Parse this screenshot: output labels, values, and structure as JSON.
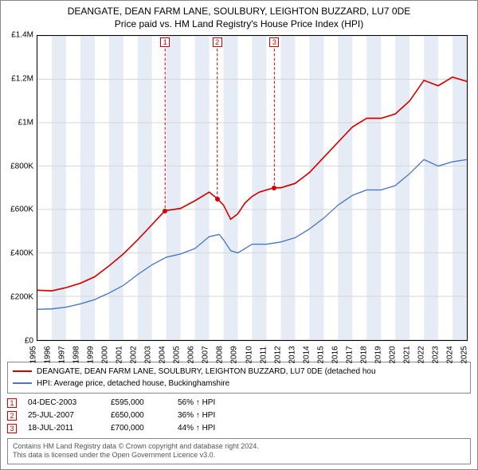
{
  "title_line1": "DEANGATE, DEAN FARM LANE, SOULBURY, LEIGHTON BUZZARD, LU7 0DE",
  "title_line2": "Price paid vs. HM Land Registry's House Price Index (HPI)",
  "chart": {
    "type": "line",
    "background_color": "#ffffff",
    "grid_color": "#d9d9d9",
    "y_axis": {
      "min": 0,
      "max": 1400000,
      "ticks": [
        0,
        200000,
        400000,
        600000,
        800000,
        1000000,
        1200000,
        1400000
      ],
      "tick_labels": [
        "£0",
        "£200K",
        "£400K",
        "£600K",
        "£800K",
        "£1M",
        "£1.2M",
        "£1.4M"
      ],
      "label_fontsize": 10
    },
    "x_axis": {
      "min": 1995,
      "max": 2025,
      "ticks": [
        1995,
        1996,
        1997,
        1998,
        1999,
        2000,
        2001,
        2002,
        2003,
        2004,
        2005,
        2006,
        2007,
        2008,
        2009,
        2010,
        2011,
        2012,
        2013,
        2014,
        2015,
        2016,
        2017,
        2018,
        2019,
        2020,
        2021,
        2022,
        2023,
        2024,
        2025
      ],
      "label_rotation": -90,
      "label_fontsize": 10
    },
    "bands": {
      "color": "#e6ecf5",
      "years": [
        1996,
        1998,
        2000,
        2002,
        2004,
        2006,
        2008,
        2010,
        2012,
        2014,
        2016,
        2018,
        2020,
        2022,
        2024
      ]
    },
    "series": [
      {
        "name": "property",
        "color": "#d40000",
        "line_width": 1.5,
        "points": [
          [
            1995,
            228000
          ],
          [
            1996,
            225000
          ],
          [
            1997,
            240000
          ],
          [
            1998,
            260000
          ],
          [
            1999,
            290000
          ],
          [
            2000,
            340000
          ],
          [
            2001,
            395000
          ],
          [
            2002,
            460000
          ],
          [
            2003,
            530000
          ],
          [
            2003.92,
            595000
          ],
          [
            2004.5,
            600000
          ],
          [
            2005,
            605000
          ],
          [
            2006,
            640000
          ],
          [
            2007,
            680000
          ],
          [
            2007.56,
            650000
          ],
          [
            2008,
            620000
          ],
          [
            2008.5,
            555000
          ],
          [
            2009,
            580000
          ],
          [
            2009.5,
            630000
          ],
          [
            2010,
            660000
          ],
          [
            2010.5,
            680000
          ],
          [
            2011,
            690000
          ],
          [
            2011.55,
            700000
          ],
          [
            2012,
            700000
          ],
          [
            2013,
            720000
          ],
          [
            2014,
            770000
          ],
          [
            2015,
            840000
          ],
          [
            2016,
            910000
          ],
          [
            2017,
            980000
          ],
          [
            2018,
            1020000
          ],
          [
            2019,
            1020000
          ],
          [
            2020,
            1040000
          ],
          [
            2021,
            1100000
          ],
          [
            2022,
            1195000
          ],
          [
            2023,
            1170000
          ],
          [
            2024,
            1210000
          ],
          [
            2025,
            1190000
          ]
        ]
      },
      {
        "name": "hpi",
        "color": "#4a76c7",
        "line_width": 1.2,
        "points": [
          [
            1995,
            140000
          ],
          [
            1996,
            142000
          ],
          [
            1997,
            150000
          ],
          [
            1998,
            165000
          ],
          [
            1999,
            185000
          ],
          [
            2000,
            215000
          ],
          [
            2001,
            250000
          ],
          [
            2002,
            300000
          ],
          [
            2003,
            345000
          ],
          [
            2004,
            380000
          ],
          [
            2005,
            395000
          ],
          [
            2006,
            420000
          ],
          [
            2007,
            475000
          ],
          [
            2007.7,
            485000
          ],
          [
            2008,
            460000
          ],
          [
            2008.5,
            410000
          ],
          [
            2009,
            400000
          ],
          [
            2010,
            440000
          ],
          [
            2011,
            440000
          ],
          [
            2012,
            450000
          ],
          [
            2013,
            470000
          ],
          [
            2014,
            510000
          ],
          [
            2015,
            560000
          ],
          [
            2016,
            620000
          ],
          [
            2017,
            665000
          ],
          [
            2018,
            690000
          ],
          [
            2019,
            690000
          ],
          [
            2020,
            710000
          ],
          [
            2021,
            765000
          ],
          [
            2022,
            830000
          ],
          [
            2023,
            800000
          ],
          [
            2024,
            820000
          ],
          [
            2025,
            830000
          ]
        ]
      }
    ],
    "sale_markers": {
      "border_color": "#d40000",
      "dot_color": "#d40000",
      "line_color": "#d40000",
      "items": [
        {
          "num": "1",
          "year": 2003.92,
          "value": 595000
        },
        {
          "num": "2",
          "year": 2007.56,
          "value": 650000
        },
        {
          "num": "3",
          "year": 2011.55,
          "value": 700000
        }
      ]
    }
  },
  "legend": {
    "items": [
      {
        "color": "#d40000",
        "label": "DEANGATE, DEAN FARM LANE, SOULBURY, LEIGHTON BUZZARD, LU7 0DE (detached hou"
      },
      {
        "color": "#4a76c7",
        "label": "HPI: Average price, detached house, Buckinghamshire"
      }
    ]
  },
  "sales_table": {
    "marker_border": "#d40000",
    "hpi_suffix": "↑ HPI",
    "rows": [
      {
        "num": "1",
        "date": "04-DEC-2003",
        "price": "£595,000",
        "pct": "56%"
      },
      {
        "num": "2",
        "date": "25-JUL-2007",
        "price": "£650,000",
        "pct": "36%"
      },
      {
        "num": "3",
        "date": "18-JUL-2011",
        "price": "£700,000",
        "pct": "44%"
      }
    ]
  },
  "footer_line1": "Contains HM Land Registry data © Crown copyright and database right 2024.",
  "footer_line2": "This data is licensed under the Open Government Licence v3.0."
}
